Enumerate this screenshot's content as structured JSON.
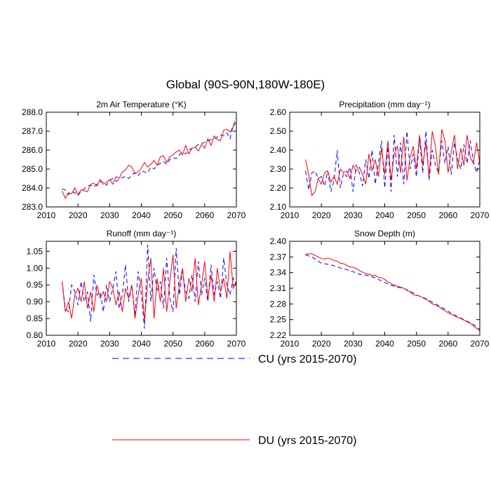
{
  "chart_data": {
    "type": "line",
    "title": "Global (90S-90N,180W-180E)",
    "legend": {
      "placement": "bottom",
      "entries": [
        {
          "name": "CU (yrs 2015-2070)",
          "color": "#0000ff",
          "style": "dashed"
        },
        {
          "name": "DU (yrs 2015-2070)",
          "color": "#ff0000",
          "style": "solid"
        }
      ]
    },
    "panels": [
      {
        "id": "temperature",
        "title": "2m Air Temperature (°K)",
        "xlim": [
          2010,
          2070
        ],
        "xticks": [
          2010,
          2020,
          2030,
          2040,
          2050,
          2060,
          2070
        ],
        "xtick_labels": [
          "2010",
          "2020",
          "2030",
          "2040",
          "2050",
          "2060",
          "2070"
        ],
        "ylim": [
          283.0,
          288.0
        ],
        "yticks": [
          283.0,
          284.0,
          285.0,
          286.0,
          287.0,
          288.0
        ],
        "ytick_labels": [
          "283.0",
          "284.0",
          "285.0",
          "286.0",
          "287.0",
          "288.0"
        ],
        "x_start": 2015,
        "series": [
          {
            "name": "CU",
            "values": [
              283.95,
              283.9,
              283.65,
              283.8,
              283.75,
              283.6,
              283.85,
              283.95,
              284.1,
              284.15,
              284.05,
              284.2,
              284.35,
              284.3,
              284.15,
              284.4,
              284.5,
              284.35,
              284.45,
              284.55,
              284.6,
              284.5,
              284.7,
              284.8,
              284.65,
              284.9,
              284.85,
              284.8,
              285.1,
              285.0,
              285.2,
              285.3,
              285.4,
              285.25,
              285.5,
              285.6,
              285.55,
              285.75,
              285.9,
              285.8,
              286.0,
              286.1,
              286.15,
              286.3,
              286.35,
              286.4,
              286.5,
              286.55,
              286.6,
              286.7,
              286.8,
              286.75,
              286.9,
              286.6,
              287.3,
              287.7
            ]
          },
          {
            "name": "DU",
            "values": [
              283.85,
              283.45,
              283.75,
              283.7,
              284.0,
              283.65,
              283.9,
              283.85,
              283.8,
              284.2,
              284.25,
              284.1,
              284.45,
              284.2,
              284.3,
              284.45,
              284.2,
              284.6,
              284.5,
              284.85,
              284.95,
              285.2,
              285.1,
              284.75,
              284.85,
              285.05,
              285.35,
              285.1,
              285.25,
              285.45,
              285.2,
              285.65,
              285.7,
              285.35,
              285.65,
              285.75,
              285.9,
              286.0,
              285.75,
              286.25,
              285.8,
              286.1,
              286.15,
              285.95,
              286.3,
              286.1,
              286.6,
              286.25,
              286.75,
              286.55,
              286.5,
              287.05,
              287.1,
              286.95,
              287.25,
              287.45
            ]
          }
        ]
      },
      {
        "id": "precipitation",
        "title": "Precipitation (mm day⁻¹)",
        "xlim": [
          2010,
          2070
        ],
        "xticks": [
          2010,
          2020,
          2030,
          2040,
          2050,
          2060,
          2070
        ],
        "xtick_labels": [
          "2010",
          "2020",
          "2030",
          "2040",
          "2050",
          "2060",
          "2070"
        ],
        "ylim": [
          2.1,
          2.6
        ],
        "yticks": [
          2.1,
          2.2,
          2.3,
          2.4,
          2.5,
          2.6
        ],
        "ytick_labels": [
          "2.10",
          "2.20",
          "2.30",
          "2.40",
          "2.50",
          "2.60"
        ],
        "x_start": 2015,
        "series": [
          {
            "name": "CU",
            "values": [
              2.29,
              2.19,
              2.28,
              2.29,
              2.25,
              2.26,
              2.21,
              2.29,
              2.18,
              2.24,
              2.4,
              2.2,
              2.28,
              2.26,
              2.31,
              2.18,
              2.32,
              2.28,
              2.21,
              2.35,
              2.25,
              2.4,
              2.22,
              2.33,
              2.45,
              2.2,
              2.42,
              2.18,
              2.48,
              2.26,
              2.44,
              2.22,
              2.5,
              2.3,
              2.38,
              2.26,
              2.46,
              2.28,
              2.5,
              2.24,
              2.4,
              2.32,
              2.28,
              2.45,
              2.33,
              2.42,
              2.27,
              2.44,
              2.35,
              2.3,
              2.43,
              2.33,
              2.45,
              2.34,
              2.28,
              2.35
            ]
          },
          {
            "name": "DU",
            "values": [
              2.35,
              2.27,
              2.16,
              2.18,
              2.25,
              2.22,
              2.28,
              2.29,
              2.23,
              2.26,
              2.22,
              2.3,
              2.28,
              2.29,
              2.25,
              2.32,
              2.29,
              2.31,
              2.27,
              2.22,
              2.38,
              2.29,
              2.35,
              2.26,
              2.41,
              2.27,
              2.45,
              2.24,
              2.38,
              2.42,
              2.28,
              2.47,
              2.24,
              2.36,
              2.42,
              2.3,
              2.48,
              2.32,
              2.44,
              2.26,
              2.5,
              2.42,
              2.27,
              2.51,
              2.45,
              2.28,
              2.39,
              2.48,
              2.3,
              2.41,
              2.32,
              2.48,
              2.36,
              2.33,
              2.44,
              2.33
            ]
          }
        ]
      },
      {
        "id": "runoff",
        "title": "Runoff (mm day⁻¹)",
        "xlim": [
          2010,
          2070
        ],
        "xticks": [
          2010,
          2020,
          2030,
          2040,
          2050,
          2060,
          2070
        ],
        "xtick_labels": [
          "2010",
          "2020",
          "2030",
          "2040",
          "2050",
          "2060",
          "2070"
        ],
        "ylim": [
          0.8,
          1.08
        ],
        "yticks": [
          0.8,
          0.85,
          0.9,
          0.95,
          1.0,
          1.05
        ],
        "ytick_labels": [
          "0.80",
          "0.85",
          "0.90",
          "0.95",
          "1.00",
          "1.05"
        ],
        "x_start": 2015,
        "series": [
          {
            "name": "CU",
            "values": [
              0.96,
              0.88,
              0.87,
              0.95,
              0.93,
              0.89,
              0.96,
              0.9,
              0.93,
              0.84,
              0.98,
              0.92,
              0.93,
              0.87,
              0.95,
              0.9,
              0.94,
              0.99,
              0.88,
              0.92,
              1.01,
              0.9,
              0.95,
              0.86,
              0.99,
              0.92,
              0.82,
              1.07,
              0.9,
              1.0,
              0.93,
              0.96,
              0.88,
              1.03,
              0.91,
              0.87,
              1.06,
              0.92,
              0.99,
              0.93,
              0.91,
              0.98,
              0.9,
              1.02,
              0.92,
              0.97,
              0.9,
              1.01,
              0.92,
              0.96,
              0.91,
              1.03,
              0.95,
              0.92,
              0.97,
              0.95
            ]
          },
          {
            "name": "DU",
            "values": [
              0.96,
              0.87,
              0.9,
              0.85,
              0.92,
              0.94,
              0.9,
              0.96,
              0.88,
              0.93,
              0.87,
              0.95,
              0.91,
              0.93,
              0.9,
              0.96,
              0.94,
              0.89,
              0.93,
              0.87,
              0.94,
              0.91,
              0.95,
              0.85,
              0.92,
              0.97,
              0.84,
              0.96,
              1.03,
              0.85,
              0.97,
              0.9,
              1.0,
              0.87,
              0.96,
              1.04,
              0.88,
              0.95,
              1.0,
              0.9,
              0.97,
              0.93,
              1.03,
              0.89,
              0.95,
              1.02,
              0.91,
              0.98,
              0.9,
              1.0,
              0.93,
              0.97,
              0.91,
              1.05,
              0.94,
              0.96
            ]
          }
        ]
      },
      {
        "id": "snow-depth",
        "title": "Snow Depth (m)",
        "xlim": [
          2010,
          2070
        ],
        "xticks": [
          2010,
          2020,
          2030,
          2040,
          2050,
          2060,
          2070
        ],
        "xtick_labels": [
          "2010",
          "2020",
          "2030",
          "2040",
          "2050",
          "2060",
          "2070"
        ],
        "ylim": [
          2.22,
          2.4
        ],
        "yticks": [
          2.22,
          2.25,
          2.28,
          2.31,
          2.34,
          2.37,
          2.4
        ],
        "ytick_labels": [
          "2.22",
          "2.25",
          "2.28",
          "2.31",
          "2.34",
          "2.37",
          "2.40"
        ],
        "x_start": 2015,
        "series": [
          {
            "name": "CU",
            "values": [
              2.374,
              2.372,
              2.37,
              2.366,
              2.362,
              2.358,
              2.357,
              2.356,
              2.355,
              2.353,
              2.351,
              2.349,
              2.347,
              2.346,
              2.343,
              2.342,
              2.339,
              2.337,
              2.336,
              2.335,
              2.334,
              2.332,
              2.33,
              2.327,
              2.324,
              2.321,
              2.318,
              2.316,
              2.314,
              2.312,
              2.311,
              2.31,
              2.307,
              2.304,
              2.301,
              2.297,
              2.295,
              2.293,
              2.29,
              2.287,
              2.283,
              2.28,
              2.277,
              2.273,
              2.27,
              2.266,
              2.262,
              2.259,
              2.256,
              2.253,
              2.25,
              2.247,
              2.244,
              2.241,
              2.236,
              2.231
            ]
          },
          {
            "name": "DU",
            "values": [
              2.375,
              2.376,
              2.376,
              2.373,
              2.37,
              2.367,
              2.366,
              2.368,
              2.366,
              2.363,
              2.362,
              2.358,
              2.357,
              2.354,
              2.351,
              2.35,
              2.348,
              2.344,
              2.341,
              2.338,
              2.337,
              2.334,
              2.335,
              2.331,
              2.33,
              2.327,
              2.322,
              2.319,
              2.316,
              2.314,
              2.312,
              2.31,
              2.306,
              2.303,
              2.298,
              2.296,
              2.295,
              2.292,
              2.289,
              2.285,
              2.28,
              2.278,
              2.275,
              2.271,
              2.267,
              2.263,
              2.26,
              2.257,
              2.254,
              2.252,
              2.249,
              2.246,
              2.243,
              2.238,
              2.233,
              2.229
            ]
          }
        ]
      }
    ]
  }
}
